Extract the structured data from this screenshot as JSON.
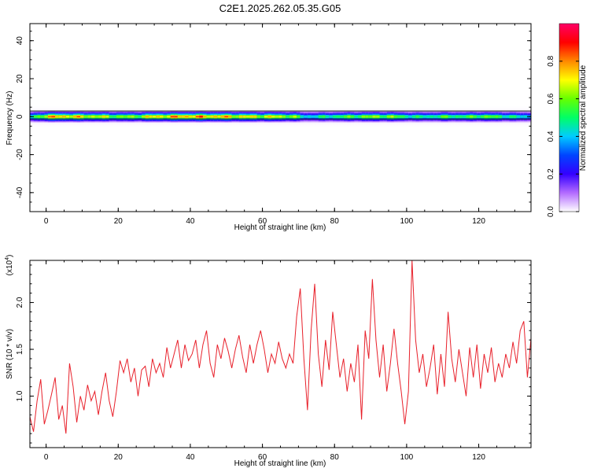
{
  "figure": {
    "title": "C2E1.2025.262.05.35.G05"
  },
  "chart_data": [
    {
      "type": "heatmap",
      "title": "C2E1.2025.262.05.35.G05",
      "xlabel": "Height of straight line (km)",
      "ylabel": "Frequency (Hz)",
      "xlim": [
        -4.5,
        134.5
      ],
      "ylim": [
        -50,
        49
      ],
      "x_ticks": [
        "0",
        "20",
        "40",
        "60",
        "80",
        "100",
        "120"
      ],
      "y_ticks": [
        "40",
        "20",
        "0",
        "-20",
        "-40"
      ],
      "band_center_hz": 0,
      "band_halfwidth_hz": 3,
      "grid": false,
      "colorbar": {
        "label": "Normalized spectral amplitude",
        "range": [
          0,
          1
        ],
        "ticks": [
          "0.0",
          "0.2",
          "0.4",
          "0.6",
          "0.8"
        ],
        "colormap": "rainbow (white-violet-blue-cyan-green-yellow-red-magenta)",
        "colors": [
          "#ffffff",
          "#b36bff",
          "#3300ff",
          "#0044ff",
          "#00ccff",
          "#00ff66",
          "#66ff00",
          "#ffff00",
          "#ff8800",
          "#ff0000",
          "#ff0066"
        ]
      },
      "amplitude_profile": {
        "x": [
          -4,
          0,
          4,
          8,
          12,
          16,
          20,
          24,
          28,
          32,
          36,
          40,
          44,
          48,
          52,
          56,
          60,
          64,
          68,
          72,
          76,
          80,
          84,
          88,
          92,
          96,
          100,
          104,
          108,
          112,
          116,
          120,
          124,
          128,
          132
        ],
        "values": [
          0.55,
          0.85,
          0.9,
          0.85,
          0.8,
          0.75,
          0.7,
          0.7,
          0.8,
          0.85,
          0.9,
          0.92,
          0.9,
          0.88,
          0.85,
          0.8,
          0.8,
          0.78,
          0.75,
          0.5,
          0.55,
          0.6,
          0.65,
          0.7,
          0.72,
          0.7,
          0.6,
          0.55,
          0.6,
          0.65,
          0.6,
          0.7,
          0.65,
          0.6,
          0.5
        ]
      }
    },
    {
      "type": "line",
      "title": "",
      "xlabel": "Height of straight line (km)",
      "ylabel": "SNR (10 * v/v)",
      "y_multiplier_label": "(x10",
      "y_multiplier_exp": "4",
      "xlim": [
        -4.5,
        134.5
      ],
      "ylim": [
        0.45,
        2.45
      ],
      "x_ticks": [
        "0",
        "20",
        "40",
        "60",
        "80",
        "100",
        "120"
      ],
      "y_ticks": [
        "1.0",
        "1.5",
        "2.0"
      ],
      "grid": false,
      "color": "#e8202a",
      "series": [
        {
          "x": [
            -4.5,
            -3.5,
            -2.5,
            -1.5,
            -0.5,
            0.5,
            1.5,
            2.5,
            3.5,
            4.5,
            5.5,
            6.5,
            7.5,
            8.5,
            9.5,
            10.5,
            11.5,
            12.5,
            13.5,
            14.5,
            15.5,
            16.5,
            17.5,
            18.5,
            19.5,
            20.5,
            21.5,
            22.5,
            23.5,
            24.5,
            25.5,
            26.5,
            27.5,
            28.5,
            29.5,
            30.5,
            31.5,
            32.5,
            33.5,
            34.5,
            35.5,
            36.5,
            37.5,
            38.5,
            39.5,
            40.5,
            41.5,
            42.5,
            43.5,
            44.5,
            45.5,
            46.5,
            47.5,
            48.5,
            49.5,
            50.5,
            51.5,
            52.5,
            53.5,
            54.5,
            55.5,
            56.5,
            57.5,
            58.5,
            59.5,
            60.5,
            61.5,
            62.5,
            63.5,
            64.5,
            65.5,
            66.5,
            67.5,
            68.5,
            69.5,
            70.5,
            71.5,
            72.5,
            73.5,
            74.5,
            75.5,
            76.5,
            77.5,
            78.5,
            79.5,
            80.5,
            81.5,
            82.5,
            83.5,
            84.5,
            85.5,
            86.5,
            87.5,
            88.5,
            89.5,
            90.5,
            91.5,
            92.5,
            93.5,
            94.5,
            95.5,
            96.5,
            97.5,
            98.5,
            99.5,
            100.5,
            101.5,
            102.5,
            103.5,
            104.5,
            105.5,
            106.5,
            107.5,
            108.5,
            109.5,
            110.5,
            111.5,
            112.5,
            113.5,
            114.5,
            115.5,
            116.5,
            117.5,
            118.5,
            119.5,
            120.5,
            121.5,
            122.5,
            123.5,
            124.5,
            125.5,
            126.5,
            127.5,
            128.5,
            129.5,
            130.5,
            131.5,
            132.5,
            133.5,
            134.5
          ],
          "values": [
            0.78,
            0.62,
            0.95,
            1.18,
            0.7,
            0.85,
            1.02,
            1.2,
            0.75,
            0.9,
            0.6,
            1.35,
            1.1,
            0.72,
            1.0,
            0.85,
            1.12,
            0.95,
            1.05,
            0.8,
            1.05,
            1.25,
            0.95,
            0.78,
            1.05,
            1.38,
            1.25,
            1.4,
            1.15,
            1.3,
            1.0,
            1.28,
            1.32,
            1.1,
            1.4,
            1.25,
            1.35,
            1.2,
            1.52,
            1.3,
            1.45,
            1.6,
            1.3,
            1.55,
            1.38,
            1.45,
            1.6,
            1.3,
            1.55,
            1.7,
            1.35,
            1.2,
            1.55,
            1.4,
            1.62,
            1.48,
            1.3,
            1.5,
            1.65,
            1.42,
            1.25,
            1.55,
            1.35,
            1.55,
            1.7,
            1.5,
            1.25,
            1.45,
            1.35,
            1.58,
            1.4,
            1.3,
            1.45,
            1.35,
            1.85,
            2.15,
            1.4,
            0.85,
            1.7,
            2.2,
            1.45,
            1.1,
            1.6,
            1.28,
            1.9,
            1.55,
            1.2,
            1.4,
            1.05,
            1.35,
            1.15,
            1.55,
            0.75,
            1.7,
            1.4,
            2.25,
            1.6,
            1.2,
            1.55,
            1.05,
            1.35,
            1.72,
            1.35,
            1.05,
            0.7,
            1.05,
            2.45,
            1.6,
            1.25,
            1.45,
            1.1,
            1.3,
            1.55,
            1.02,
            1.45,
            1.1,
            1.9,
            1.4,
            1.15,
            1.5,
            1.25,
            1.0,
            1.52,
            1.2,
            1.55,
            1.08,
            1.45,
            1.25,
            1.52,
            1.15,
            1.35,
            1.2,
            1.45,
            1.3,
            1.58,
            1.35,
            1.7,
            1.8,
            1.2,
            1.62
          ]
        }
      ]
    }
  ]
}
